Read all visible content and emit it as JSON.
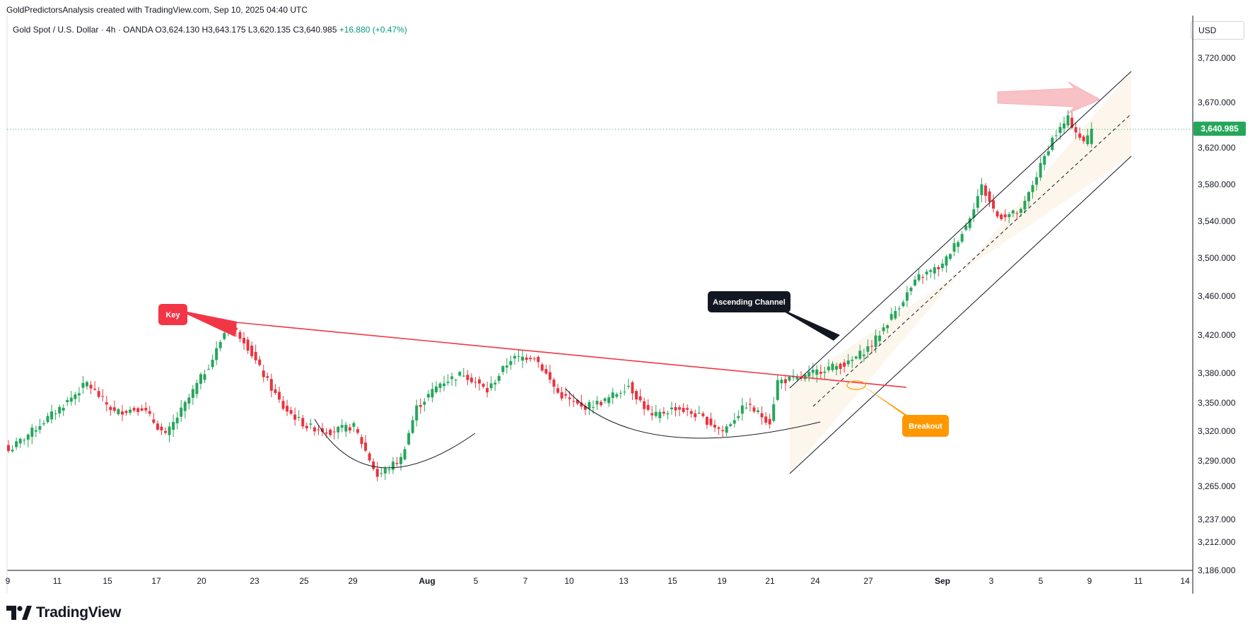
{
  "header": {
    "credit": "GoldPredictorsAnalysis created with TradingView.com, Sep 10, 2025 04:40 UTC"
  },
  "legend": {
    "symbol": "Gold Spot / U.S. Dollar · 4h · OANDA",
    "open_label": "O",
    "open": "3,624.130",
    "high_label": "H",
    "high": "3,643.175",
    "low_label": "L",
    "low": "3,620.135",
    "close_label": "C",
    "close": "3,640.985",
    "change": "+16.880 (+0.47%)"
  },
  "price_scale": {
    "currency": "USD",
    "last_price": "3,640.985",
    "last_price_color": "#26a65b"
  },
  "branding": {
    "logo_text": "TradingView",
    "logo_icon": "tradingview-logo-icon"
  },
  "colors": {
    "up": "#26a65b",
    "down": "#e8343f",
    "trendline": "#f23645",
    "channel": "#131722",
    "channel_fill": "#fdf6ec",
    "key_label_bg": "#f23645",
    "breakout_label_bg": "#ff9800",
    "channel_label_bg": "#131722",
    "arrow_fill": "#f7b7bd"
  },
  "annotations": {
    "key": "Key",
    "ascending_channel": "Ascending Channel",
    "breakout": "Breakout"
  },
  "chart_data": {
    "type": "candlestick",
    "title": "Gold Spot / U.S. Dollar · 4h · OANDA",
    "y_axis": {
      "ticks": [
        3720,
        3670,
        3620,
        3580,
        3540,
        3500,
        3460,
        3420,
        3380,
        3350,
        3320,
        3290,
        3265,
        3237,
        3212,
        3186
      ],
      "tick_labels": [
        "3,720.000",
        "3,670.000",
        "3,620.000",
        "3,580.000",
        "3,540.000",
        "3,500.000",
        "3,460.000",
        "3,420.000",
        "3,380.000",
        "3,350.000",
        "3,320.000",
        "3,290.000",
        "3,265.000",
        "3,237.000",
        "3,212.000",
        "3,186.000"
      ]
    },
    "x_axis": {
      "tick_labels": [
        "9",
        "11",
        "15",
        "17",
        "20",
        "23",
        "25",
        "29",
        "Aug",
        "5",
        "7",
        "10",
        "13",
        "15",
        "19",
        "21",
        "24",
        "27",
        "Sep",
        "3",
        "5",
        "9",
        "11",
        "14"
      ],
      "bold_labels": [
        "Aug",
        "Sep"
      ]
    },
    "close_path": [
      {
        "i": 0,
        "c": 3300
      },
      {
        "i": 6,
        "c": 3320
      },
      {
        "i": 14,
        "c": 3348
      },
      {
        "i": 20,
        "c": 3370
      },
      {
        "i": 27,
        "c": 3340
      },
      {
        "i": 34,
        "c": 3345
      },
      {
        "i": 40,
        "c": 3315
      },
      {
        "i": 46,
        "c": 3355
      },
      {
        "i": 52,
        "c": 3395
      },
      {
        "i": 56,
        "c": 3432
      },
      {
        "i": 60,
        "c": 3415
      },
      {
        "i": 64,
        "c": 3385
      },
      {
        "i": 70,
        "c": 3345
      },
      {
        "i": 76,
        "c": 3325
      },
      {
        "i": 82,
        "c": 3320
      },
      {
        "i": 88,
        "c": 3325
      },
      {
        "i": 94,
        "c": 3275
      },
      {
        "i": 100,
        "c": 3292
      },
      {
        "i": 104,
        "c": 3345
      },
      {
        "i": 110,
        "c": 3370
      },
      {
        "i": 116,
        "c": 3380
      },
      {
        "i": 122,
        "c": 3362
      },
      {
        "i": 128,
        "c": 3395
      },
      {
        "i": 134,
        "c": 3398
      },
      {
        "i": 140,
        "c": 3360
      },
      {
        "i": 146,
        "c": 3345
      },
      {
        "i": 152,
        "c": 3352
      },
      {
        "i": 158,
        "c": 3368
      },
      {
        "i": 164,
        "c": 3335
      },
      {
        "i": 170,
        "c": 3345
      },
      {
        "i": 176,
        "c": 3336
      },
      {
        "i": 182,
        "c": 3320
      },
      {
        "i": 188,
        "c": 3348
      },
      {
        "i": 194,
        "c": 3330
      },
      {
        "i": 196,
        "c": 3372
      },
      {
        "i": 202,
        "c": 3375
      },
      {
        "i": 208,
        "c": 3385
      },
      {
        "i": 214,
        "c": 3390
      },
      {
        "i": 220,
        "c": 3410
      },
      {
        "i": 226,
        "c": 3445
      },
      {
        "i": 232,
        "c": 3480
      },
      {
        "i": 238,
        "c": 3492
      },
      {
        "i": 244,
        "c": 3535
      },
      {
        "i": 248,
        "c": 3578
      },
      {
        "i": 252,
        "c": 3545
      },
      {
        "i": 258,
        "c": 3550
      },
      {
        "i": 262,
        "c": 3590
      },
      {
        "i": 266,
        "c": 3630
      },
      {
        "i": 270,
        "c": 3652
      },
      {
        "i": 274,
        "c": 3625
      },
      {
        "i": 276,
        "c": 3641
      }
    ]
  }
}
